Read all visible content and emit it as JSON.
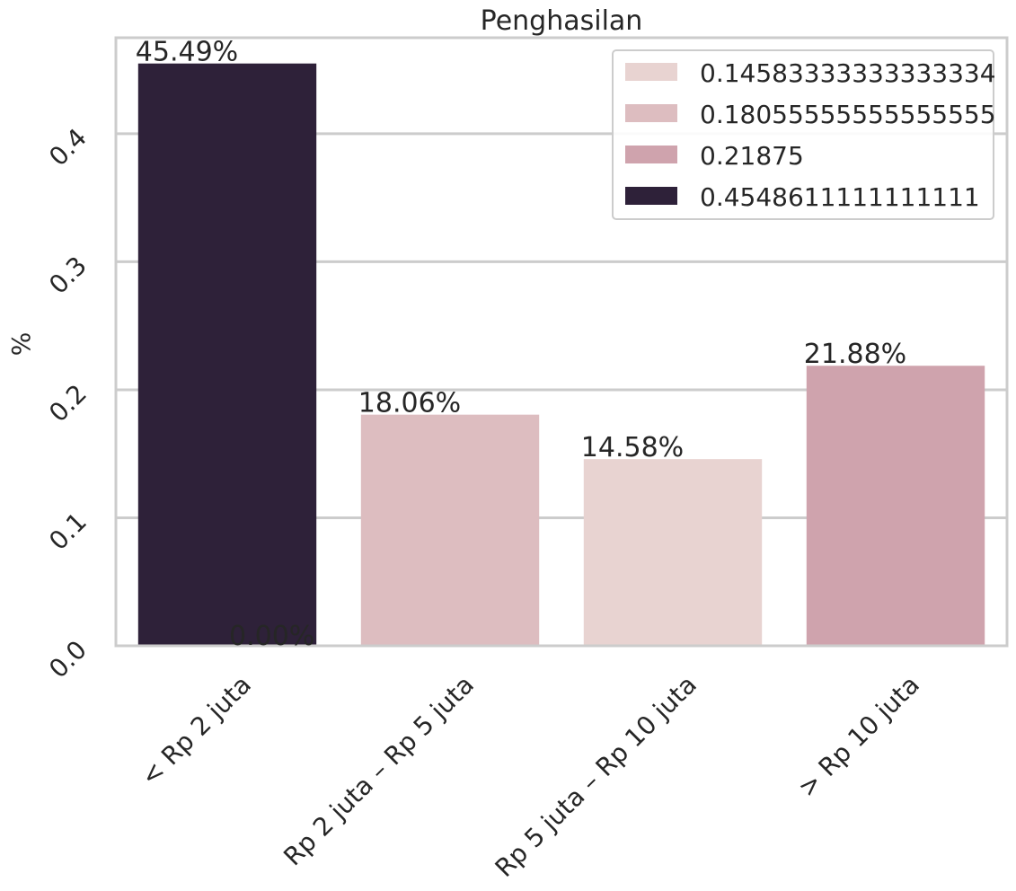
{
  "chart_data": {
    "type": "bar",
    "title": "Penghasilan",
    "xlabel": "",
    "ylabel": "%",
    "categories": [
      "< Rp 2 juta",
      "Rp 2 juta – Rp 5 juta",
      "Rp 5 juta – Rp 10 juta",
      "> Rp 10 juta"
    ],
    "values": [
      0.4548611111111111,
      0.18055555555555555,
      0.14583333333333334,
      0.21875
    ],
    "bar_colors": [
      "#2e2139",
      "#ddbdc0",
      "#e8d3d1",
      "#cfa3ad"
    ],
    "bar_labels": [
      "45.49%",
      "18.06%",
      "14.58%",
      "21.88%"
    ],
    "extra_label": "0.00%",
    "ylim": [
      0,
      0.475
    ],
    "yticks": [
      0.0,
      0.1,
      0.2,
      0.3,
      0.4
    ],
    "ytick_labels": [
      "0.0",
      "0.1",
      "0.2",
      "0.3",
      "0.4"
    ],
    "grid": true,
    "legend": {
      "placement": "top-right",
      "entries": [
        {
          "label": "0.14583333333333334",
          "color": "#e8d3d1"
        },
        {
          "label": "0.18055555555555555",
          "color": "#ddbdc0"
        },
        {
          "label": "0.21875",
          "color": "#cfa3ad"
        },
        {
          "label": "0.4548611111111111",
          "color": "#2e2139"
        }
      ]
    },
    "colors": {
      "grid": "#cccccc",
      "frame": "#cccccc",
      "text": "#262626"
    }
  }
}
